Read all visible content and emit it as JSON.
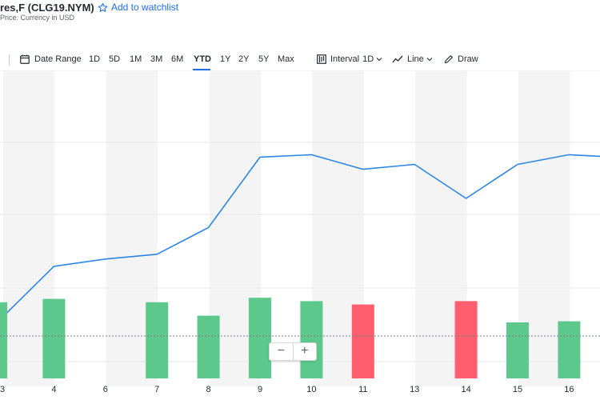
{
  "header": {
    "title": "res,F (CLG19.NYM)",
    "watchlist_label": "Add to watchlist",
    "subtitle": "Price. Currency in USD"
  },
  "toolbar": {
    "date_range_label": "Date Range",
    "ranges": [
      "1D",
      "5D",
      "1M",
      "3M",
      "6M",
      "YTD",
      "1Y",
      "2Y",
      "5Y",
      "Max"
    ],
    "active_range": "YTD",
    "interval_label": "Interval",
    "interval_value": "1D",
    "line_label": "Line",
    "draw_label": "Draw"
  },
  "zoom": {
    "minus": "−",
    "plus": "+"
  },
  "colors": {
    "line": "#2b86e8",
    "volume_up": "#5cc88c",
    "volume_down": "#ff5e6f",
    "accent": "#1d6ee7"
  },
  "icons": [
    "star-icon",
    "calendar-icon",
    "candlestick-icon",
    "line-chart-icon",
    "pencil-icon",
    "chevron-down-icon",
    "minus-icon",
    "plus-icon"
  ],
  "chart_data": {
    "type": "line",
    "x": [
      "3",
      "4",
      "6",
      "7",
      "8",
      "9",
      "10",
      "11",
      "13",
      "14",
      "15",
      "16"
    ],
    "series": [
      {
        "values": [
          45.2,
          47.3,
          47.6,
          47.8,
          48.9,
          51.8,
          51.9,
          51.3,
          51.5,
          50.1,
          51.5,
          51.9
        ]
      }
    ],
    "volume": [
      0.68,
      0.71,
      0,
      0.68,
      0.56,
      0.72,
      0.69,
      0.66,
      0,
      0.69,
      0.5,
      0.51
    ],
    "volume_direction": [
      "up",
      "up",
      "none",
      "up",
      "up",
      "up",
      "up",
      "down",
      "none",
      "down",
      "up",
      "up"
    ],
    "grid": true
  }
}
